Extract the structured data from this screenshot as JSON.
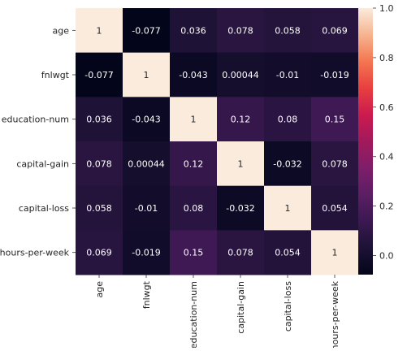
{
  "chart_data": {
    "type": "heatmap",
    "title": "",
    "xlabel": "",
    "ylabel": "",
    "row_labels": [
      "age",
      "fnlwgt",
      "education-num",
      "capital-gain",
      "capital-loss",
      "hours-per-week"
    ],
    "col_labels": [
      "age",
      "fnlwgt",
      "education-num",
      "capital-gain",
      "capital-loss",
      "hours-per-week"
    ],
    "values": [
      [
        1,
        -0.077,
        0.036,
        0.078,
        0.058,
        0.069
      ],
      [
        -0.077,
        1,
        -0.043,
        0.00044,
        -0.01,
        -0.019
      ],
      [
        0.036,
        -0.043,
        1,
        0.12,
        0.08,
        0.15
      ],
      [
        0.078,
        0.00044,
        0.12,
        1,
        -0.032,
        0.078
      ],
      [
        0.058,
        -0.01,
        0.08,
        -0.032,
        1,
        0.054
      ],
      [
        0.069,
        -0.019,
        0.15,
        0.078,
        0.054,
        1
      ]
    ],
    "cell_text": [
      [
        "1",
        "-0.077",
        "0.036",
        "0.078",
        "0.058",
        "0.069"
      ],
      [
        "-0.077",
        "1",
        "-0.043",
        "0.00044",
        "-0.01",
        "-0.019"
      ],
      [
        "0.036",
        "-0.043",
        "1",
        "0.12",
        "0.08",
        "0.15"
      ],
      [
        "0.078",
        "0.00044",
        "0.12",
        "1",
        "-0.032",
        "0.078"
      ],
      [
        "0.058",
        "-0.01",
        "0.08",
        "-0.032",
        "1",
        "0.054"
      ],
      [
        "0.069",
        "-0.019",
        "0.15",
        "0.078",
        "0.054",
        "1"
      ]
    ],
    "colorbar": {
      "range": [
        -0.077,
        1
      ],
      "ticks": [
        0.0,
        0.2,
        0.4,
        0.6,
        0.8,
        1.0
      ],
      "tick_labels": [
        "0.0",
        "0.2",
        "0.4",
        "0.6",
        "0.8",
        "1.0"
      ]
    },
    "colormap": "rocket",
    "grid": false,
    "legend": "colorbar-right"
  }
}
